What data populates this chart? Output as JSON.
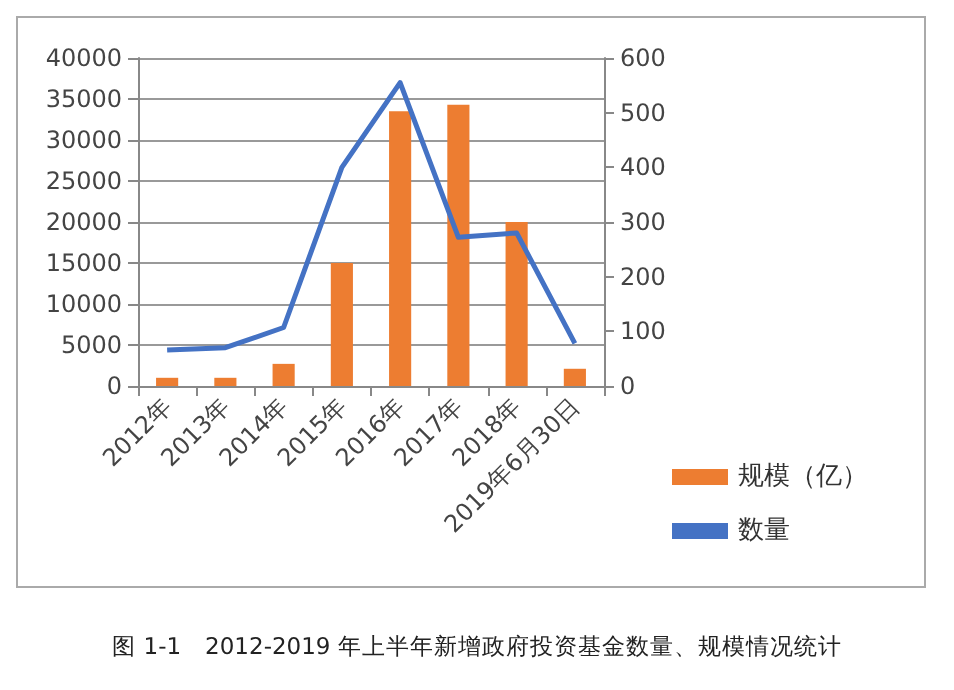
{
  "chart_data": {
    "type": "bar",
    "title": "图 1-1　2012-2019 年上半年新增政府投资基金数量、规模情况统计",
    "categories": [
      "2012年",
      "2013年",
      "2014年",
      "2015年",
      "2016年",
      "2017年",
      "2018年",
      "2019年6月30日"
    ],
    "series": [
      {
        "name": "规模（亿）",
        "color": "#ed7d31",
        "values": [
          1000,
          1000,
          2700,
          15000,
          33500,
          34300,
          20000,
          2100
        ]
      },
      {
        "name": "数量",
        "type": "line",
        "axis": "y2",
        "color": "#4472c4",
        "values": [
          66,
          70,
          107,
          400,
          555,
          272,
          280,
          78
        ]
      }
    ],
    "ylim": [
      0,
      40000
    ],
    "yticks": [
      0,
      5000,
      10000,
      15000,
      20000,
      25000,
      30000,
      35000,
      40000
    ],
    "y2lim": [
      0,
      600
    ],
    "y2ticks": [
      0,
      100,
      200,
      300,
      400,
      500,
      600
    ],
    "grid": "y",
    "legend": "right",
    "marker": "none"
  }
}
